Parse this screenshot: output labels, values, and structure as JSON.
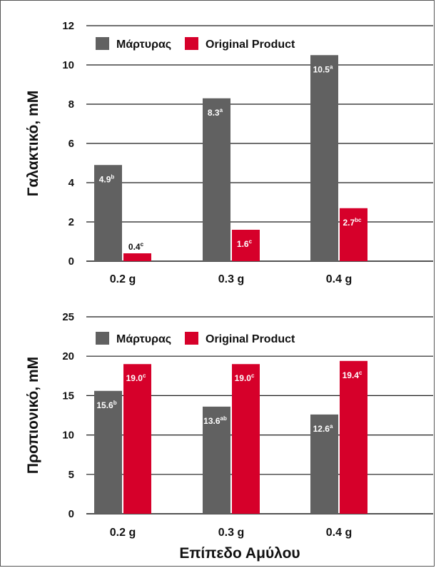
{
  "colors": {
    "control": "#616161",
    "product": "#d6002a",
    "grid": "#1a1a1a"
  },
  "xlabel": "Επίπεδο Αμύλου",
  "chart_data": [
    {
      "type": "bar",
      "ylabel": "Γαλακτικό, mM",
      "categories": [
        "0.2 g",
        "0.3 g",
        "0.4 g"
      ],
      "ylim": [
        0,
        12
      ],
      "yticks": [
        0,
        2,
        4,
        6,
        8,
        10,
        12
      ],
      "grid": true,
      "legend_position": "top-left",
      "series": [
        {
          "name": "Μάρτυρας",
          "values": [
            4.9,
            8.3,
            10.5
          ],
          "labels": [
            "4.9",
            "8.3",
            "10.5"
          ],
          "sups": [
            "b",
            "a",
            "a"
          ]
        },
        {
          "name": "Original Product",
          "values": [
            0.4,
            1.6,
            2.7
          ],
          "labels": [
            "0.4",
            "1.6",
            "2.7"
          ],
          "sups": [
            "c",
            "c",
            "bc"
          ]
        }
      ]
    },
    {
      "type": "bar",
      "ylabel": "Προπιονικό, mM",
      "categories": [
        "0.2 g",
        "0.3 g",
        "0.4 g"
      ],
      "ylim": [
        0,
        25
      ],
      "yticks": [
        0,
        5,
        10,
        15,
        20,
        25
      ],
      "grid": true,
      "legend_position": "top-left",
      "series": [
        {
          "name": "Μάρτυρας",
          "values": [
            15.6,
            13.6,
            12.6
          ],
          "labels": [
            "15.6",
            "13.6",
            "12.6"
          ],
          "sups": [
            "b",
            "ab",
            "a"
          ]
        },
        {
          "name": "Original Product",
          "values": [
            19.0,
            19.0,
            19.4
          ],
          "labels": [
            "19.0",
            "19.0",
            "19.4"
          ],
          "sups": [
            "c",
            "c",
            "c"
          ]
        }
      ]
    }
  ]
}
